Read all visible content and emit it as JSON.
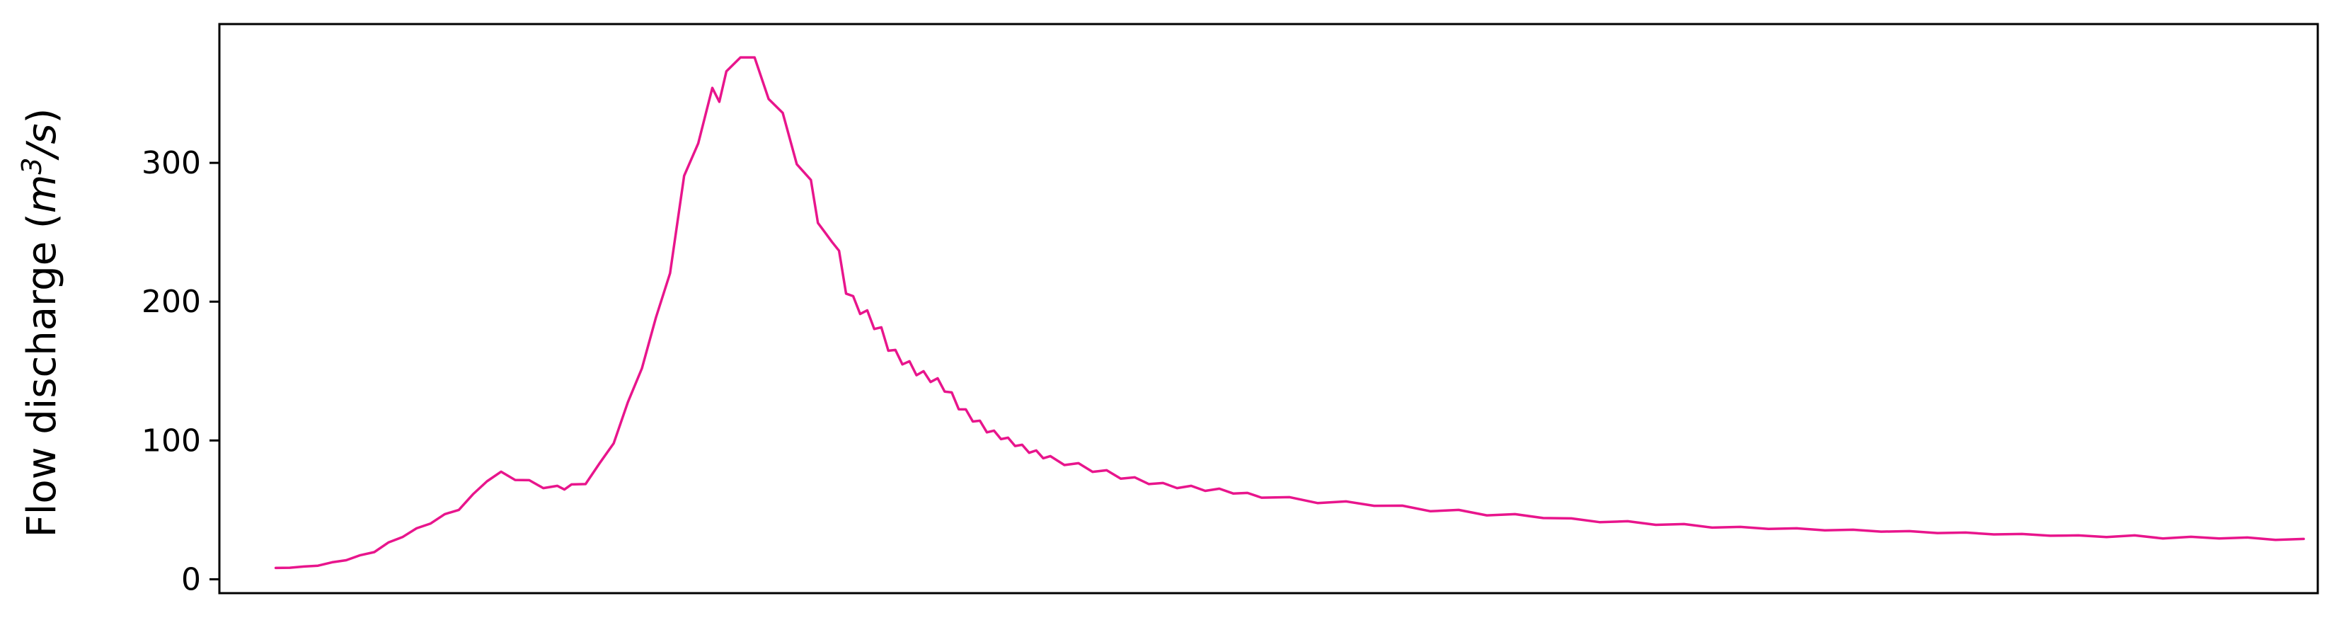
{
  "chart_data": {
    "type": "line",
    "title": "",
    "xlabel": "",
    "ylabel": {
      "prefix": "Flow discharge (",
      "unit_base": "m",
      "unit_sup": "3",
      "unit_rest": "/s",
      "suffix": ")"
    },
    "ylim": [
      -10,
      400
    ],
    "xlim": [
      -40,
      1450
    ],
    "yticks": [
      0,
      100,
      200,
      300
    ],
    "ytick_labels": [
      "0",
      "100",
      "200",
      "300"
    ],
    "xticks_shown": false,
    "grid": false,
    "legend": "none",
    "color": "#e8158c",
    "series": [
      {
        "x": [
          0,
          10,
          20,
          30,
          40,
          50,
          60,
          70,
          80,
          90,
          100,
          110,
          120,
          130,
          140,
          150,
          160,
          170,
          180,
          190,
          200,
          205,
          210,
          220,
          230,
          240,
          250,
          260,
          270,
          280,
          290,
          300,
          310,
          315,
          320,
          330,
          340,
          350,
          360,
          370,
          380,
          385,
          390,
          395,
          400,
          405,
          410,
          415,
          420,
          425,
          430,
          435,
          440,
          445,
          450,
          455,
          460,
          465,
          470,
          475,
          480,
          485,
          490,
          495,
          500,
          505,
          510,
          515,
          520,
          525,
          530,
          535,
          540,
          545,
          550,
          560,
          570,
          580,
          590,
          600,
          610,
          620,
          630,
          640,
          650,
          660,
          670,
          680,
          690,
          700,
          720,
          740,
          760,
          780,
          800,
          820,
          840,
          860,
          880,
          900,
          920,
          940,
          960,
          980,
          1000,
          1020,
          1040,
          1060,
          1080,
          1100,
          1120,
          1140,
          1160,
          1180,
          1200,
          1220,
          1240,
          1260,
          1280,
          1300,
          1320,
          1340,
          1360,
          1380,
          1400,
          1420,
          1440
        ],
        "y": [
          8,
          8.5,
          9,
          10,
          12,
          14,
          17,
          20,
          26,
          31,
          36,
          41,
          46,
          51,
          60,
          72,
          76,
          73,
          70,
          67,
          66,
          66,
          67,
          70,
          82,
          100,
          125,
          155,
          185,
          225,
          285,
          320,
          348,
          350,
          360,
          382,
          370,
          352,
          330,
          305,
          282,
          262,
          245,
          248,
          232,
          210,
          200,
          195,
          190,
          184,
          178,
          168,
          162,
          158,
          154,
          150,
          147,
          145,
          142,
          138,
          132,
          125,
          120,
          116,
          112,
          108,
          105,
          103,
          100,
          98,
          95,
          93,
          91,
          89,
          87,
          84,
          82,
          79,
          77,
          74,
          72,
          70,
          68,
          67,
          66,
          65,
          64,
          63,
          61,
          60,
          58,
          56,
          55,
          54,
          52,
          50,
          49,
          47,
          46,
          45,
          43,
          42,
          41,
          40,
          39,
          38,
          37,
          37,
          36,
          36,
          35,
          35,
          34,
          34,
          33,
          33,
          32,
          32,
          31,
          31,
          31,
          30,
          30,
          30,
          29.5,
          29,
          28.5
        ]
      }
    ]
  }
}
